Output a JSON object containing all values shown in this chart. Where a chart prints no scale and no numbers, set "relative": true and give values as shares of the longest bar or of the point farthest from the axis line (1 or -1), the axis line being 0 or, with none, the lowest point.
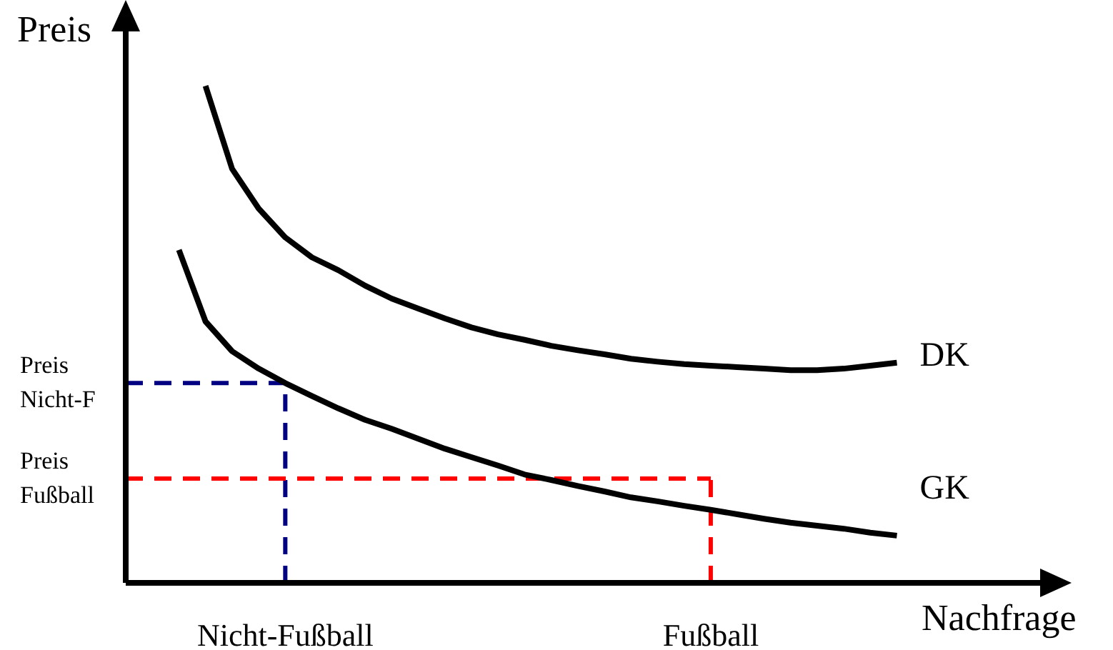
{
  "chart_data": {
    "type": "line",
    "xlabel": "Nachfrage",
    "ylabel": "Preis",
    "relative": true,
    "line_style": "solid",
    "categories": [
      null,
      null,
      null,
      null,
      null,
      null,
      "Nicht-Fußball",
      null,
      null,
      null,
      null,
      null,
      null,
      null,
      null,
      null,
      null,
      null,
      null,
      null,
      null,
      null,
      "Fußball",
      null,
      null,
      null,
      null,
      null,
      null,
      null
    ],
    "series": [
      {
        "name": "DK",
        "color": "#000000",
        "values": [
          null,
          null,
          null,
          1,
          0.833,
          0.753,
          0.695,
          0.655,
          0.629,
          0.598,
          0.572,
          0.552,
          0.532,
          0.514,
          0.5,
          0.489,
          0.477,
          0.468,
          0.46,
          0.451,
          0.445,
          0.44,
          0.437,
          0.434,
          0.431,
          0.428,
          0.428,
          0.431,
          0.437,
          0.443
        ]
      },
      {
        "name": "GK",
        "color": "#000000",
        "values": [
          null,
          null,
          0.67,
          0.526,
          0.466,
          0.431,
          0.402,
          0.376,
          0.351,
          0.328,
          0.31,
          0.29,
          0.27,
          0.253,
          0.236,
          0.218,
          0.207,
          0.195,
          0.184,
          0.172,
          0.164,
          0.155,
          0.147,
          0.138,
          0.129,
          0.121,
          0.115,
          0.109,
          0.101,
          0.095
        ]
      }
    ],
    "ref_lines": [
      {
        "axis": "y",
        "value": 0.402,
        "label": "Preis Nicht-F",
        "color": "#000080",
        "line_style": "dashed"
      },
      {
        "axis": "x",
        "value": "Nicht-Fußball",
        "color": "#000080",
        "line_style": "dashed"
      },
      {
        "axis": "y",
        "value": 0.21,
        "label": "Preis Fußball",
        "color": "#ff0000",
        "line_style": "dashed"
      },
      {
        "axis": "x",
        "value": "Fußball",
        "color": "#ff0000",
        "line_style": "dashed"
      }
    ]
  }
}
